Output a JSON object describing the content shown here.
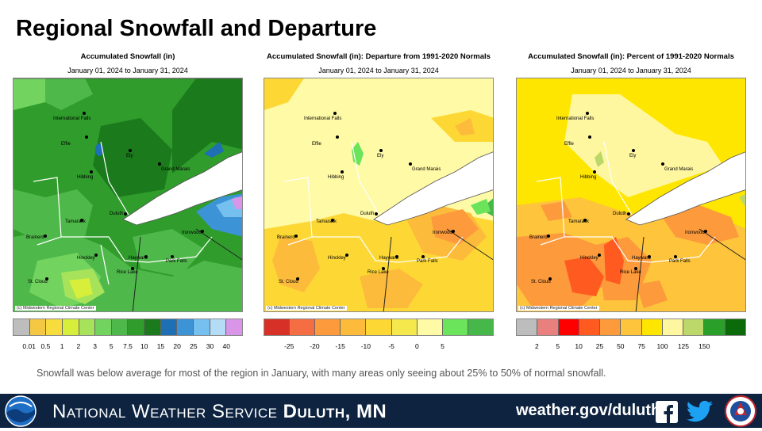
{
  "header": {
    "title": "Regional Snowfall and Departure"
  },
  "cities": [
    "International Falls",
    "Ely",
    "Effie",
    "Grand Marais",
    "Hibbing",
    "Duluth",
    "Tamarack",
    "Brainerd",
    "Ironwood",
    "Hinckley",
    "Hayward",
    "Park Falls",
    "St. Cloud",
    "Rice Lake"
  ],
  "credit": "(c) Midwestern Regional Climate Center",
  "panels": [
    {
      "title": "Accumulated Snowfall (in)",
      "date": "January 01, 2024 to January 31, 2024",
      "legend_colors": [
        "#bdbdbd",
        "#f4c842",
        "#f6dc3c",
        "#d7ef3a",
        "#a6e35a",
        "#72d35f",
        "#4fb84a",
        "#2f9c2c",
        "#1a7a1c",
        "#1e6fb3",
        "#3c94d6",
        "#76c0ef",
        "#b5dcf7",
        "#d995e8"
      ],
      "legend_labels": [
        "0.01",
        "0.5",
        "1",
        "2",
        "3",
        "5",
        "7.5",
        "10",
        "15",
        "20",
        "25",
        "30",
        "40"
      ]
    },
    {
      "title": "Accumulated Snowfall (in): Departure from 1991-2020 Normals",
      "date": "January 01, 2024 to January 31, 2024",
      "legend_colors": [
        "#d73027",
        "#f46d43",
        "#fd9a3c",
        "#fdbb3c",
        "#fdd835",
        "#f4e84c",
        "#fffaa6",
        "#6be35a",
        "#46b84a"
      ],
      "legend_labels": [
        "-25",
        "-20",
        "-15",
        "-10",
        "-5",
        "0",
        "5"
      ]
    },
    {
      "title": "Accumulated Snowfall (in): Percent of 1991-2020 Normals",
      "date": "January 01, 2024 to January 31, 2024",
      "legend_colors": [
        "#bdbdbd",
        "#e8807d",
        "#ff0000",
        "#ff5a1f",
        "#fd9a3c",
        "#fdc43c",
        "#ffe600",
        "#fff7a0",
        "#bcd86a",
        "#2aa02a",
        "#0b6b0b"
      ],
      "legend_labels": [
        "2",
        "5",
        "10",
        "25",
        "50",
        "75",
        "100",
        "125",
        "150"
      ]
    }
  ],
  "caption": "Snowfall was below average for most of the region in January, with many areas only seeing about 25% to 50% of normal snowfall.",
  "footer": {
    "office_prefix": "National Weather Service",
    "office_city": "Duluth, MN",
    "website": "weather.gov/duluth"
  }
}
